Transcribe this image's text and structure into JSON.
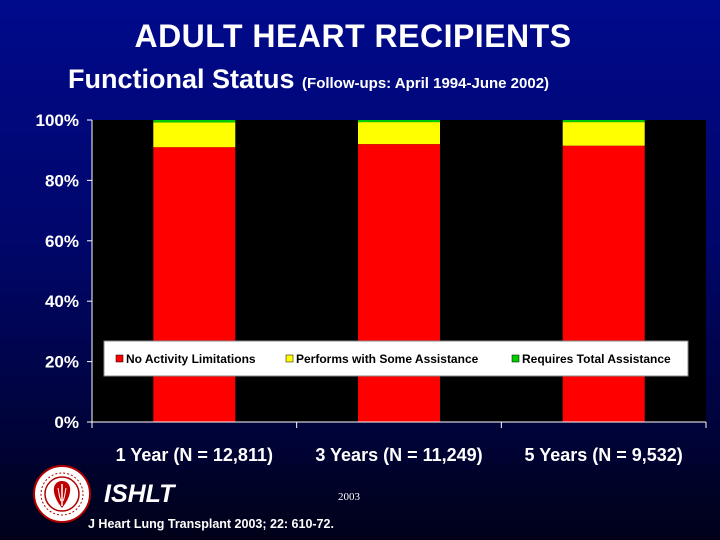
{
  "slide": {
    "title": "ADULT HEART RECIPIENTS",
    "subtitle_main": "Functional Status",
    "subtitle_note": "(Follow-ups: April 1994-June 2002)",
    "organization": "ISHLT",
    "year": "2003",
    "citation": "J Heart Lung Transplant 2003; 22: 610-72."
  },
  "colors": {
    "plot_background": "#000000",
    "no_activity": "#ff0000",
    "some_assistance": "#ffff00",
    "total_assistance": "#00cc00"
  },
  "chart_data": {
    "type": "bar",
    "stacked": true,
    "categories": [
      "1 Year (N = 12,811)",
      "3 Years (N = 11,249)",
      "5 Years (N = 9,532)"
    ],
    "series": [
      {
        "name": "No Activity Limitations",
        "values": [
          91,
          92,
          91.5
        ],
        "color": "#ff0000"
      },
      {
        "name": "Performs with Some Assistance",
        "values": [
          8.2,
          7.3,
          7.8
        ],
        "color": "#ffff00"
      },
      {
        "name": "Requires Total Assistance",
        "values": [
          0.8,
          0.7,
          0.7
        ],
        "color": "#00cc00"
      }
    ],
    "ylim": [
      0,
      100
    ],
    "yticks": [
      "0%",
      "20%",
      "40%",
      "60%",
      "80%",
      "100%"
    ],
    "ytick_values": [
      0,
      20,
      40,
      60,
      80,
      100
    ],
    "grid": false,
    "legend_position": "inside-bottom"
  }
}
